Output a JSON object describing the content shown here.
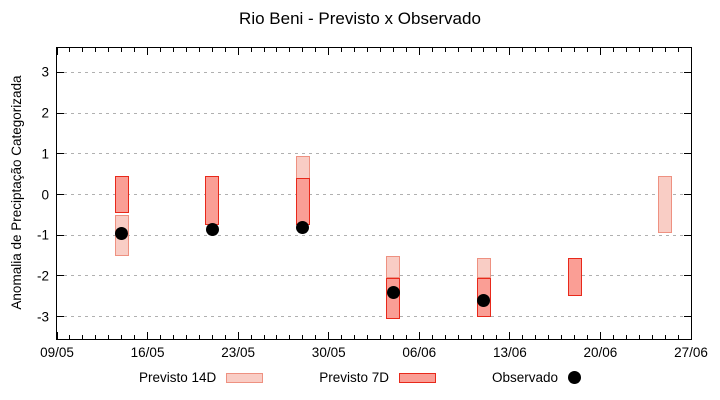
{
  "chart_data": {
    "type": "bar",
    "title": "Rio Beni - Previsto x Observado",
    "ylabel": "Anomalia de Preciptação Categorizada",
    "xlabel": "",
    "ylim": [
      -3.55,
      3.6
    ],
    "x_total_days": 49,
    "grid": true,
    "legend_position": "bottom",
    "y_ticks": [
      {
        "value": -3,
        "label": "-3"
      },
      {
        "value": -2,
        "label": "-2"
      },
      {
        "value": -1,
        "label": "-1"
      },
      {
        "value": 0,
        "label": "0"
      },
      {
        "value": 1,
        "label": "1"
      },
      {
        "value": 2,
        "label": "2"
      },
      {
        "value": 3,
        "label": "3"
      }
    ],
    "x_ticks": [
      {
        "day": 0,
        "label": "09/05"
      },
      {
        "day": 7,
        "label": "16/05"
      },
      {
        "day": 14,
        "label": "23/05"
      },
      {
        "day": 21,
        "label": "30/05"
      },
      {
        "day": 28,
        "label": "06/06"
      },
      {
        "day": 35,
        "label": "13/06"
      },
      {
        "day": 42,
        "label": "20/06"
      },
      {
        "day": 49,
        "label": "27/06"
      }
    ],
    "series": [
      {
        "name": "Previsto 14D",
        "type": "range-bar",
        "fill": "#f9cdc5",
        "border": "#ee9181",
        "border_width": 1.3,
        "points": [
          {
            "date": "14/05",
            "day": 5,
            "low": -1.5,
            "high": -0.5
          },
          {
            "date": "28/05",
            "day": 19,
            "low": -0.75,
            "high": 0.95
          },
          {
            "date": "04/06",
            "day": 26,
            "low": -2.05,
            "high": -1.5
          },
          {
            "date": "11/06",
            "day": 33,
            "low": -2.05,
            "high": -1.55
          },
          {
            "date": "25/06",
            "day": 47,
            "low": -0.95,
            "high": 0.45
          }
        ]
      },
      {
        "name": "Previsto 7D",
        "type": "range-bar",
        "fill": "#fa9e95",
        "border": "#e8291b",
        "border_width": 1.7,
        "points": [
          {
            "date": "14/05",
            "day": 5,
            "low": -0.45,
            "high": 0.45
          },
          {
            "date": "21/05",
            "day": 12,
            "low": -0.75,
            "high": 0.45
          },
          {
            "date": "28/05",
            "day": 19,
            "low": -0.75,
            "high": 0.4
          },
          {
            "date": "04/06",
            "day": 26,
            "low": -3.05,
            "high": -2.05
          },
          {
            "date": "11/06",
            "day": 33,
            "low": -3.0,
            "high": -2.05
          },
          {
            "date": "18/06",
            "day": 40,
            "low": -2.5,
            "high": -1.55
          }
        ]
      },
      {
        "name": "Observado",
        "type": "scatter",
        "color": "#000000",
        "points": [
          {
            "date": "14/05",
            "day": 5,
            "value": -0.95
          },
          {
            "date": "21/05",
            "day": 12,
            "value": -0.85
          },
          {
            "date": "28/05",
            "day": 19,
            "value": -0.8
          },
          {
            "date": "04/06",
            "day": 26,
            "value": -2.4
          },
          {
            "date": "11/06",
            "day": 33,
            "value": -2.6
          }
        ]
      }
    ]
  }
}
